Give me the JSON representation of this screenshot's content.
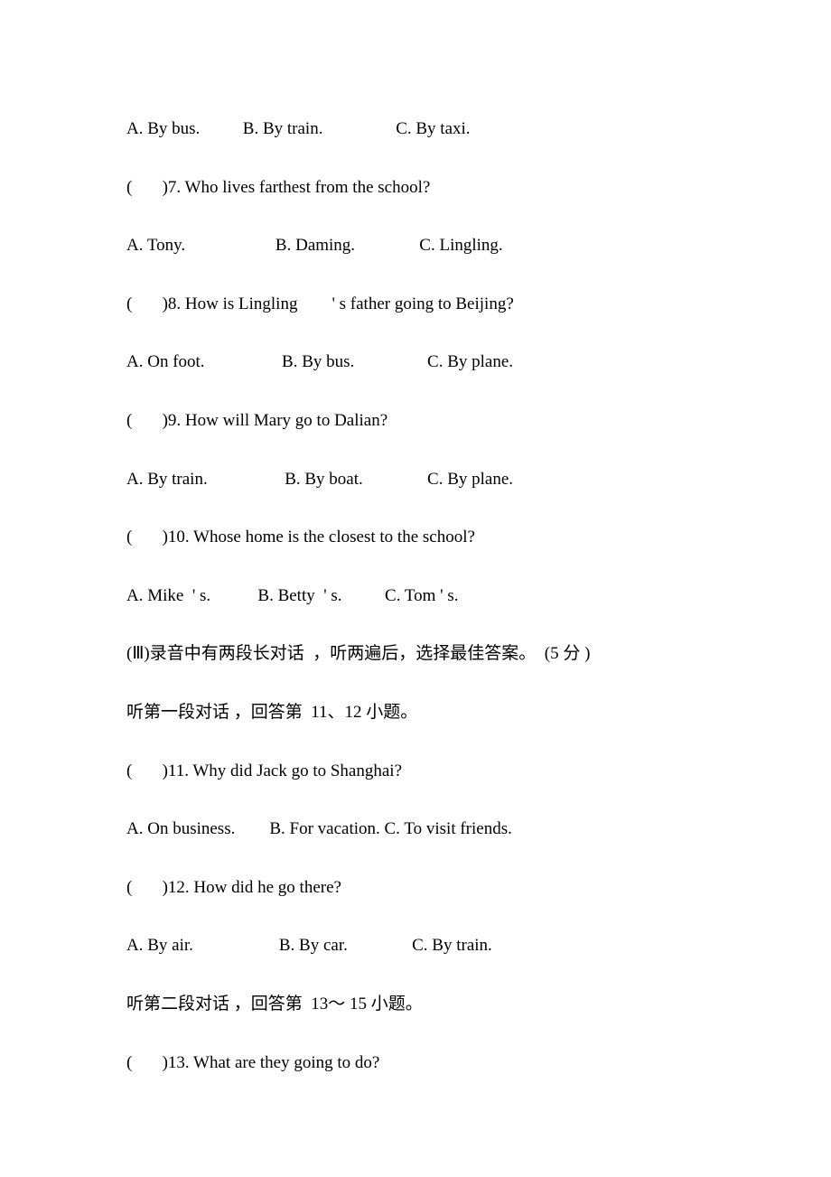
{
  "q6_options": "A. By bus.          B. By train.                 C. By taxi.",
  "q7": "(       )7. Who lives farthest from the school?",
  "q7_options": "A. Tony.                     B. Daming.               C. Lingling.",
  "q8": "(       )8. How is Lingling        ' s father going to Beijing?",
  "q8_options": "A. On foot.                  B. By bus.                 C. By plane.",
  "q9": "(       )9. How will Mary go to Dalian?",
  "q9_options": "A. By train.                  B. By boat.               C. By plane.",
  "q10": "(       )10. Whose home is the closest to the school?",
  "q10_options": "A. Mike  ' s.           B. Betty  ' s.          C. Tom ' s.",
  "section3_header": "(Ⅲ)录音中有两段长对话  ，听两遍后，选择最佳答案。  (5 分 )",
  "dialog1_header": "听第一段对话 ，回答第  11、12 小题。",
  "q11": "(       )11. Why did Jack go to Shanghai?",
  "q11_options": "A. On business.        B. For vacation. C. To visit friends.",
  "q12": "(       )12. How did he go there?",
  "q12_options": "A. By air.                    B. By car.               C. By train.",
  "dialog2_header": "听第二段对话 ，回答第  13～ 15 小题。",
  "q13": "(       )13. What are they going to do?"
}
